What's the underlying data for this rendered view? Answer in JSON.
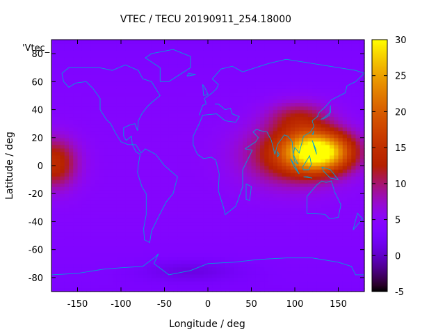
{
  "chart_data": {
    "type": "heatmap",
    "title": "VTEC / TECU 20190911_254.18000",
    "xlabel": "Longitude / deg",
    "ylabel": "Latitude / deg",
    "key_label": "'Vtec_",
    "xlim": [
      -180,
      180
    ],
    "ylim": [
      -90,
      90
    ],
    "x_ticks": [
      -150,
      -100,
      -50,
      0,
      50,
      100,
      150
    ],
    "y_ticks": [
      -80,
      -60,
      -40,
      -20,
      0,
      20,
      40,
      60,
      80
    ],
    "colorbar": {
      "range": [
        -5,
        30
      ],
      "ticks": [
        -5,
        0,
        5,
        10,
        15,
        20,
        25,
        30
      ],
      "palette": "gnuplot-rgbformulae-7-5-15"
    },
    "grid": {
      "lon_step_deg": 5,
      "lat_step_deg": 2.5
    },
    "background_value_tecu": 4.5,
    "features": [
      {
        "name": "asia-pacific-anomaly",
        "lon": 128,
        "lat": 10,
        "peak_tecu": 24,
        "lon_width": 38,
        "lat_width": 14
      },
      {
        "name": "indian-ocean-band",
        "lon": 95,
        "lat": 8,
        "peak_tecu": 9,
        "lon_width": 55,
        "lat_width": 22
      },
      {
        "name": "east-asia-north",
        "lon": 105,
        "lat": 35,
        "peak_tecu": 6,
        "lon_width": 35,
        "lat_width": 12
      },
      {
        "name": "pacific-west-edge",
        "lon": -178,
        "lat": 2,
        "peak_tecu": 10,
        "lon_width": 28,
        "lat_width": 18
      },
      {
        "name": "southern-depression",
        "lon": -20,
        "lat": -75,
        "peak_tecu": -2.5,
        "lon_width": 60,
        "lat_width": 8
      }
    ],
    "overlay": "world-coastlines",
    "coastline_color": "#00a0d8"
  }
}
